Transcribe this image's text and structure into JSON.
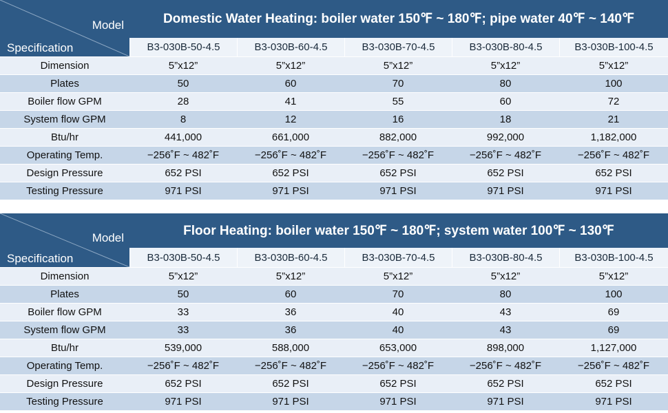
{
  "tables": [
    {
      "title": "Domestic Water Heating: boiler water 150℉ ~ 180℉; pipe water 40℉ ~ 140℉",
      "corner_top": "Model",
      "corner_bottom": "Specification",
      "models": [
        "B3-030B-50-4.5",
        "B3-030B-60-4.5",
        "B3-030B-70-4.5",
        "B3-030B-80-4.5",
        "B3-030B-100-4.5"
      ],
      "rows": [
        {
          "label": "Dimension",
          "cells": [
            "5”x12”",
            "5”x12”",
            "5”x12”",
            "5”x12”",
            "5”x12”"
          ]
        },
        {
          "label": "Plates",
          "cells": [
            "50",
            "60",
            "70",
            "80",
            "100"
          ]
        },
        {
          "label": "Boiler flow GPM",
          "cells": [
            "28",
            "41",
            "55",
            "60",
            "72"
          ]
        },
        {
          "label": "System flow GPM",
          "cells": [
            "8",
            "12",
            "16",
            "18",
            "21"
          ]
        },
        {
          "label": "Btu/hr",
          "cells": [
            "441,000",
            "661,000",
            "882,000",
            "992,000",
            "1,182,000"
          ]
        },
        {
          "label": "Operating Temp.",
          "cells": [
            "−256˚F ~ 482˚F",
            "−256˚F ~ 482˚F",
            "−256˚F ~ 482˚F",
            "−256˚F ~ 482˚F",
            "−256˚F ~ 482˚F"
          ]
        },
        {
          "label": "Design Pressure",
          "cells": [
            "652 PSI",
            "652 PSI",
            "652 PSI",
            "652 PSI",
            "652 PSI"
          ]
        },
        {
          "label": "Testing Pressure",
          "cells": [
            "971 PSI",
            "971 PSI",
            "971 PSI",
            "971 PSI",
            "971 PSI"
          ]
        }
      ]
    },
    {
      "title": "Floor Heating: boiler water 150℉ ~ 180℉; system water 100℉ ~ 130℉",
      "corner_top": "Model",
      "corner_bottom": "Specification",
      "models": [
        "B3-030B-50-4.5",
        "B3-030B-60-4.5",
        "B3-030B-70-4.5",
        "B3-030B-80-4.5",
        "B3-030B-100-4.5"
      ],
      "rows": [
        {
          "label": "Dimension",
          "cells": [
            "5”x12”",
            "5”x12”",
            "5”x12”",
            "5”x12”",
            "5”x12”"
          ]
        },
        {
          "label": "Plates",
          "cells": [
            "50",
            "60",
            "70",
            "80",
            "100"
          ]
        },
        {
          "label": "Boiler flow GPM",
          "cells": [
            "33",
            "36",
            "40",
            "43",
            "69"
          ]
        },
        {
          "label": "System flow GPM",
          "cells": [
            "33",
            "36",
            "40",
            "43",
            "69"
          ]
        },
        {
          "label": "Btu/hr",
          "cells": [
            "539,000",
            "588,000",
            "653,000",
            "898,000",
            "1,127,000"
          ]
        },
        {
          "label": "Operating Temp.",
          "cells": [
            "−256˚F ~ 482˚F",
            "−256˚F ~ 482˚F",
            "−256˚F ~ 482˚F",
            "−256˚F ~ 482˚F",
            "−256˚F ~ 482˚F"
          ]
        },
        {
          "label": "Design Pressure",
          "cells": [
            "652 PSI",
            "652 PSI",
            "652 PSI",
            "652 PSI",
            "652 PSI"
          ]
        },
        {
          "label": "Testing Pressure",
          "cells": [
            "971 PSI",
            "971 PSI",
            "971 PSI",
            "971 PSI",
            "971 PSI"
          ]
        }
      ]
    }
  ]
}
